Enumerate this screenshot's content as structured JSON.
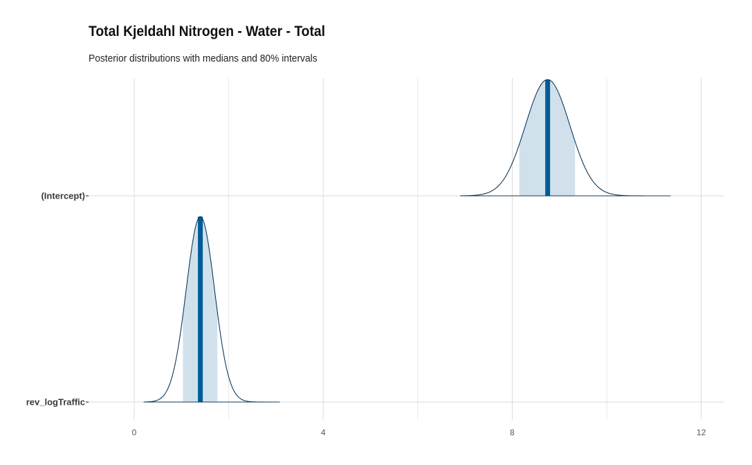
{
  "chart_data": {
    "type": "area",
    "title": "Total Kjeldahl Nitrogen - Water - Total",
    "subtitle": "Posterior distributions with medians and 80% intervals",
    "xlabel": "",
    "ylabel": "",
    "xlim": [
      -1.4,
      12.5
    ],
    "x_ticks": [
      0,
      4,
      8,
      12
    ],
    "x_tick_labels": [
      "0",
      "4",
      "8",
      "12"
    ],
    "grid": true,
    "legend": "none",
    "colors": {
      "median": "#005b96",
      "interval_fill": "#d1e1ec",
      "outline": "#0b3a5c",
      "grid": "#d9d9d9"
    },
    "parameters": [
      {
        "name": "(Intercept)",
        "median": 8.75,
        "sd": 0.47,
        "interval_80": [
          8.15,
          9.33
        ],
        "range": [
          6.9,
          11.35
        ]
      },
      {
        "name": "rev_logTraffic",
        "median": 1.4,
        "sd": 0.3,
        "interval_80": [
          1.03,
          1.76
        ],
        "range": [
          0.2,
          3.08
        ]
      }
    ]
  }
}
